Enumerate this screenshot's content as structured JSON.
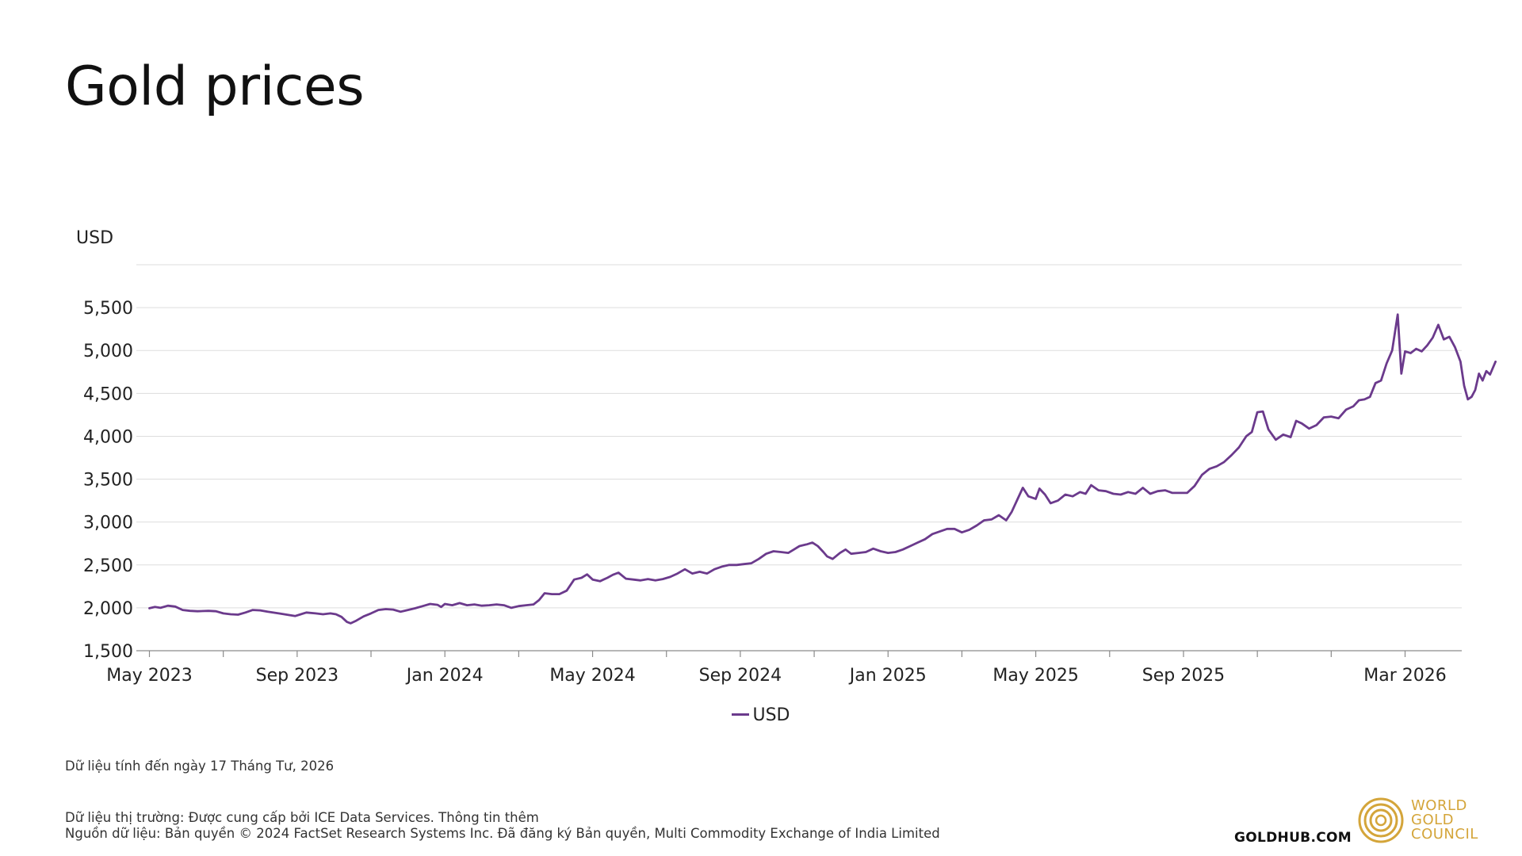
{
  "title": "Gold prices",
  "colors": {
    "series": "#6b3a8c",
    "grid": "#dddddd",
    "axis": "#8a8a8a",
    "brand_gold": "#d4a53a"
  },
  "legend": {
    "label": "USD"
  },
  "note": "Dữ liệu tính đến ngày 17 Tháng Tư, 2026",
  "footer": {
    "line1": "Dữ liệu thị trường: Được cung cấp bởi ICE Data Services. Thông tin thêm",
    "line2": "Nguồn dữ liệu: Bản quyền © 2024 FactSet Research Systems Inc. Đã đăng ký Bản quyền, Multi Commodity Exchange of India Limited",
    "site": "GOLDHUB.COM",
    "brand_line1": "WORLD",
    "brand_line2": "GOLD",
    "brand_line3": "COUNCIL"
  },
  "chart_data": {
    "type": "line",
    "title": "Gold prices",
    "ylabel": "USD",
    "xlabel": "",
    "ylim": [
      1500,
      6000
    ],
    "yticks": [
      1500,
      2000,
      2500,
      3000,
      3500,
      4000,
      4500,
      5000,
      5500
    ],
    "ytick_labels": [
      "1,500",
      "2,000",
      "2,500",
      "3,000",
      "3,500",
      "4,000",
      "4,500",
      "5,000",
      "5,500"
    ],
    "xlim": [
      -0.1,
      35.8
    ],
    "xtick_positions": [
      0,
      2,
      4,
      6,
      8,
      10,
      12,
      14,
      16,
      18,
      20,
      22,
      24,
      26,
      28,
      30,
      32,
      34
    ],
    "xtick_labels": [
      {
        "x": 0,
        "label": "May 2023"
      },
      {
        "x": 4,
        "label": "Sep 2023"
      },
      {
        "x": 8,
        "label": "Jan 2024"
      },
      {
        "x": 12,
        "label": "May 2024"
      },
      {
        "x": 16,
        "label": "Sep 2024"
      },
      {
        "x": 20,
        "label": "Jan 2025"
      },
      {
        "x": 24,
        "label": "May 2025"
      },
      {
        "x": 28,
        "label": "Sep 2025"
      },
      {
        "x": 34,
        "label": "Mar 2026"
      }
    ],
    "grid": true,
    "legend_position": "bottom-center",
    "series": [
      {
        "name": "USD",
        "points": [
          [
            0.0,
            1995
          ],
          [
            0.15,
            2010
          ],
          [
            0.3,
            2000
          ],
          [
            0.5,
            2025
          ],
          [
            0.7,
            2015
          ],
          [
            0.9,
            1975
          ],
          [
            1.1,
            1965
          ],
          [
            1.3,
            1960
          ],
          [
            1.6,
            1965
          ],
          [
            1.8,
            1960
          ],
          [
            2.0,
            1935
          ],
          [
            2.2,
            1925
          ],
          [
            2.4,
            1920
          ],
          [
            2.6,
            1945
          ],
          [
            2.8,
            1975
          ],
          [
            3.0,
            1970
          ],
          [
            3.2,
            1955
          ],
          [
            3.5,
            1935
          ],
          [
            3.8,
            1915
          ],
          [
            3.95,
            1905
          ],
          [
            4.1,
            1925
          ],
          [
            4.25,
            1945
          ],
          [
            4.5,
            1935
          ],
          [
            4.7,
            1925
          ],
          [
            4.9,
            1935
          ],
          [
            5.05,
            1925
          ],
          [
            5.2,
            1895
          ],
          [
            5.35,
            1835
          ],
          [
            5.45,
            1820
          ],
          [
            5.6,
            1850
          ],
          [
            5.8,
            1900
          ],
          [
            6.0,
            1935
          ],
          [
            6.2,
            1975
          ],
          [
            6.4,
            1985
          ],
          [
            6.6,
            1980
          ],
          [
            6.8,
            1955
          ],
          [
            7.0,
            1975
          ],
          [
            7.2,
            1995
          ],
          [
            7.4,
            2020
          ],
          [
            7.6,
            2045
          ],
          [
            7.8,
            2035
          ],
          [
            7.9,
            2010
          ],
          [
            8.0,
            2045
          ],
          [
            8.2,
            2030
          ],
          [
            8.4,
            2055
          ],
          [
            8.6,
            2030
          ],
          [
            8.8,
            2040
          ],
          [
            9.0,
            2025
          ],
          [
            9.2,
            2030
          ],
          [
            9.4,
            2040
          ],
          [
            9.6,
            2030
          ],
          [
            9.8,
            2000
          ],
          [
            10.0,
            2020
          ],
          [
            10.2,
            2030
          ],
          [
            10.4,
            2040
          ],
          [
            10.55,
            2090
          ],
          [
            10.7,
            2170
          ],
          [
            10.9,
            2160
          ],
          [
            11.1,
            2160
          ],
          [
            11.3,
            2200
          ],
          [
            11.5,
            2330
          ],
          [
            11.7,
            2350
          ],
          [
            11.85,
            2390
          ],
          [
            12.0,
            2330
          ],
          [
            12.2,
            2310
          ],
          [
            12.4,
            2350
          ],
          [
            12.55,
            2385
          ],
          [
            12.7,
            2410
          ],
          [
            12.9,
            2340
          ],
          [
            13.1,
            2330
          ],
          [
            13.3,
            2320
          ],
          [
            13.5,
            2335
          ],
          [
            13.7,
            2320
          ],
          [
            13.9,
            2335
          ],
          [
            14.1,
            2360
          ],
          [
            14.3,
            2400
          ],
          [
            14.5,
            2450
          ],
          [
            14.7,
            2400
          ],
          [
            14.9,
            2420
          ],
          [
            15.1,
            2400
          ],
          [
            15.3,
            2450
          ],
          [
            15.5,
            2480
          ],
          [
            15.7,
            2500
          ],
          [
            15.9,
            2500
          ],
          [
            16.1,
            2510
          ],
          [
            16.3,
            2520
          ],
          [
            16.5,
            2570
          ],
          [
            16.7,
            2630
          ],
          [
            16.9,
            2660
          ],
          [
            17.1,
            2650
          ],
          [
            17.3,
            2640
          ],
          [
            17.45,
            2680
          ],
          [
            17.6,
            2720
          ],
          [
            17.8,
            2740
          ],
          [
            17.95,
            2760
          ],
          [
            18.1,
            2720
          ],
          [
            18.25,
            2650
          ],
          [
            18.35,
            2600
          ],
          [
            18.5,
            2570
          ],
          [
            18.7,
            2640
          ],
          [
            18.85,
            2680
          ],
          [
            19.0,
            2630
          ],
          [
            19.2,
            2640
          ],
          [
            19.4,
            2650
          ],
          [
            19.6,
            2690
          ],
          [
            19.8,
            2660
          ],
          [
            20.0,
            2640
          ],
          [
            20.2,
            2650
          ],
          [
            20.4,
            2680
          ],
          [
            20.6,
            2720
          ],
          [
            20.8,
            2760
          ],
          [
            21.0,
            2800
          ],
          [
            21.2,
            2860
          ],
          [
            21.4,
            2890
          ],
          [
            21.6,
            2920
          ],
          [
            21.8,
            2920
          ],
          [
            22.0,
            2880
          ],
          [
            22.2,
            2910
          ],
          [
            22.4,
            2960
          ],
          [
            22.6,
            3020
          ],
          [
            22.8,
            3030
          ],
          [
            23.0,
            3080
          ],
          [
            23.2,
            3020
          ],
          [
            23.35,
            3120
          ],
          [
            23.5,
            3260
          ],
          [
            23.65,
            3400
          ],
          [
            23.8,
            3300
          ],
          [
            24.0,
            3270
          ],
          [
            24.1,
            3390
          ],
          [
            24.25,
            3320
          ],
          [
            24.4,
            3220
          ],
          [
            24.6,
            3250
          ],
          [
            24.8,
            3320
          ],
          [
            25.0,
            3300
          ],
          [
            25.2,
            3350
          ],
          [
            25.35,
            3330
          ],
          [
            25.5,
            3430
          ],
          [
            25.7,
            3370
          ],
          [
            25.9,
            3360
          ],
          [
            26.1,
            3330
          ],
          [
            26.3,
            3320
          ],
          [
            26.5,
            3350
          ],
          [
            26.7,
            3330
          ],
          [
            26.9,
            3400
          ],
          [
            27.1,
            3330
          ],
          [
            27.3,
            3360
          ],
          [
            27.5,
            3370
          ],
          [
            27.7,
            3340
          ],
          [
            27.9,
            3340
          ],
          [
            28.1,
            3340
          ],
          [
            28.3,
            3420
          ],
          [
            28.5,
            3550
          ],
          [
            28.7,
            3620
          ],
          [
            28.9,
            3650
          ],
          [
            29.1,
            3700
          ],
          [
            29.3,
            3780
          ],
          [
            29.5,
            3870
          ],
          [
            29.7,
            4000
          ],
          [
            29.85,
            4050
          ],
          [
            30.0,
            4280
          ],
          [
            30.15,
            4290
          ],
          [
            30.3,
            4080
          ],
          [
            30.5,
            3960
          ],
          [
            30.7,
            4020
          ],
          [
            30.9,
            3990
          ],
          [
            31.05,
            4180
          ],
          [
            31.2,
            4150
          ],
          [
            31.4,
            4090
          ],
          [
            31.6,
            4130
          ],
          [
            31.8,
            4220
          ],
          [
            32.0,
            4230
          ],
          [
            32.2,
            4210
          ],
          [
            32.4,
            4310
          ],
          [
            32.6,
            4350
          ],
          [
            32.75,
            4420
          ],
          [
            32.9,
            4430
          ],
          [
            33.05,
            4460
          ],
          [
            33.2,
            4620
          ],
          [
            33.35,
            4650
          ],
          [
            33.5,
            4850
          ],
          [
            33.65,
            5000
          ],
          [
            33.8,
            5420
          ],
          [
            33.9,
            4730
          ],
          [
            34.0,
            4990
          ],
          [
            34.15,
            4970
          ],
          [
            34.3,
            5020
          ],
          [
            34.45,
            4990
          ],
          [
            34.6,
            5060
          ],
          [
            34.75,
            5150
          ],
          [
            34.9,
            5300
          ],
          [
            35.05,
            5130
          ],
          [
            35.2,
            5160
          ],
          [
            35.35,
            5040
          ],
          [
            35.5,
            4870
          ],
          [
            35.6,
            4590
          ],
          [
            35.7,
            4430
          ],
          [
            35.8,
            4460
          ],
          [
            35.9,
            4540
          ],
          [
            36.0,
            4730
          ],
          [
            36.1,
            4650
          ],
          [
            36.2,
            4760
          ],
          [
            36.3,
            4720
          ],
          [
            36.45,
            4870
          ]
        ]
      }
    ]
  }
}
